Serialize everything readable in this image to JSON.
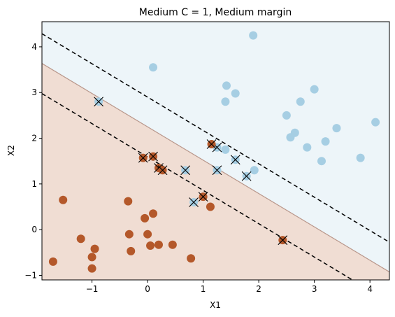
{
  "chart_data": {
    "type": "scatter",
    "title": "Medium C = 1, Medium margin",
    "xlabel": "X1",
    "ylabel": "X2",
    "xlim": [
      -1.9,
      4.35
    ],
    "ylim": [
      -1.1,
      4.55
    ],
    "xticks": [
      -1,
      0,
      1,
      2,
      3,
      4
    ],
    "yticks": [
      -1,
      0,
      1,
      2,
      3,
      4
    ],
    "grid": false,
    "colors": {
      "class_0_point": "#b4582a",
      "class_1_point": "#a6cee3",
      "class_0_region": "#f0ddd3",
      "class_1_region": "#edf5f9",
      "boundary": "#b8968a",
      "margin_line": "#000000"
    },
    "decision_boundary": {
      "slope": -0.73,
      "intercept": 2.25
    },
    "margins": [
      {
        "slope": -0.73,
        "intercept": 2.9,
        "style": "dashed"
      },
      {
        "slope": -0.73,
        "intercept": 1.59,
        "style": "dashed"
      }
    ],
    "series": [
      {
        "class": 1,
        "points": [
          [
            1.9,
            4.25
          ],
          [
            0.1,
            3.55
          ],
          [
            1.42,
            3.15
          ],
          [
            1.58,
            2.98
          ],
          [
            1.4,
            2.8
          ],
          [
            3.0,
            3.07
          ],
          [
            2.75,
            2.8
          ],
          [
            2.5,
            2.5
          ],
          [
            2.65,
            2.12
          ],
          [
            2.57,
            2.02
          ],
          [
            2.87,
            1.8
          ],
          [
            3.2,
            1.93
          ],
          [
            3.4,
            2.22
          ],
          [
            4.1,
            2.35
          ],
          [
            3.83,
            1.57
          ],
          [
            3.13,
            1.5
          ],
          [
            1.4,
            1.75
          ],
          [
            1.92,
            1.3
          ]
        ]
      },
      {
        "class": 0,
        "points": [
          [
            -1.52,
            0.65
          ],
          [
            -0.35,
            0.62
          ],
          [
            -1.2,
            -0.2
          ],
          [
            -0.95,
            -0.42
          ],
          [
            -1.0,
            -0.6
          ],
          [
            -1.0,
            -0.85
          ],
          [
            -1.7,
            -0.7
          ],
          [
            -0.33,
            -0.1
          ],
          [
            -0.3,
            -0.47
          ],
          [
            -0.05,
            0.25
          ],
          [
            0.1,
            0.35
          ],
          [
            0.0,
            -0.1
          ],
          [
            0.05,
            -0.35
          ],
          [
            0.2,
            -0.33
          ],
          [
            0.45,
            -0.33
          ],
          [
            0.78,
            -0.63
          ],
          [
            1.13,
            0.5
          ]
        ]
      }
    ],
    "support_vectors": [
      {
        "x": -0.88,
        "y": 2.8,
        "class": 1
      },
      {
        "x": 0.68,
        "y": 1.3,
        "class": 1
      },
      {
        "x": 0.83,
        "y": 0.6,
        "class": 1
      },
      {
        "x": 1.25,
        "y": 1.8,
        "class": 1
      },
      {
        "x": 1.25,
        "y": 1.3,
        "class": 1
      },
      {
        "x": 1.58,
        "y": 1.53,
        "class": 1
      },
      {
        "x": 1.78,
        "y": 1.17,
        "class": 1
      },
      {
        "x": -0.08,
        "y": 1.57,
        "class": 0
      },
      {
        "x": 0.1,
        "y": 1.6,
        "class": 0
      },
      {
        "x": 0.2,
        "y": 1.35,
        "class": 0
      },
      {
        "x": 0.27,
        "y": 1.3,
        "class": 0
      },
      {
        "x": 1.0,
        "y": 0.72,
        "class": 0
      },
      {
        "x": 1.15,
        "y": 1.87,
        "class": 0
      },
      {
        "x": 2.43,
        "y": -0.23,
        "class": 0
      }
    ]
  }
}
